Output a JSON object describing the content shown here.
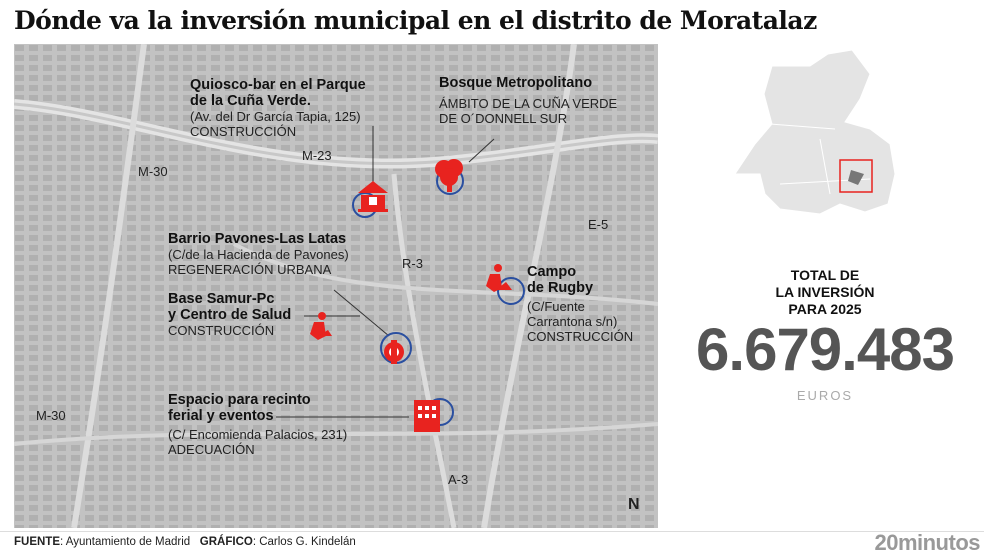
{
  "title": "Dónde va la inversión municipal en el distrito de Moratalaz",
  "map": {
    "roads": [
      "M-30",
      "M-23",
      "E-5",
      "R-3",
      "M-30",
      "A-3"
    ],
    "north": "N",
    "marker_color": "#e8231f",
    "circle_color": "#2a4fa0",
    "projects": [
      {
        "name": "Quiosco-bar en el Parque de la Cuña Verde.",
        "name_lines": [
          "Quiosco-bar en el Parque",
          "de la Cuña Verde."
        ],
        "address": "(Av. del Dr García Tapia, 125)",
        "type": "CONSTRUCCIÓN",
        "icon": "kiosk-icon"
      },
      {
        "name": "Bosque Metropolitano",
        "address_lines": [
          "ÁMBITO DE LA CUÑA VERDE",
          "DE O´DONNELL SUR"
        ],
        "icon": "tree-icon"
      },
      {
        "name": "Barrio Pavones-Las Latas",
        "address": "(C/de la Hacienda de Pavones)",
        "type": "REGENERACIÓN URBANA",
        "icon": "gear-wrench-icon"
      },
      {
        "name_lines": [
          "Base Samur-Pc",
          "y Centro de Salud"
        ],
        "type": "CONSTRUCCIÓN",
        "icon": "worker-icon"
      },
      {
        "name_lines": [
          "Campo",
          "de Rugby"
        ],
        "address_lines": [
          "(C/Fuente",
          "Carrantona s/n)"
        ],
        "type": "CONSTRUCCIÓN",
        "icon": "worker-icon"
      },
      {
        "name_lines": [
          "Espacio para recinto",
          "ferial y eventos"
        ],
        "address": "(C/ Encomienda Palacios, 231)",
        "type": "ADECUACIÓN",
        "icon": "building-icon"
      }
    ]
  },
  "summary": {
    "label_lines": [
      "TOTAL DE",
      "LA INVERSIÓN",
      "PARA 2025"
    ],
    "value": "6.679.483",
    "unit": "EUROS"
  },
  "footer": {
    "source_label": "FUENTE",
    "source": ": Ayuntamiento de Madrid",
    "graphic_label": "GRÁFICO",
    "graphic": ": Carlos G. Kindelán",
    "brand": "20minutos"
  }
}
